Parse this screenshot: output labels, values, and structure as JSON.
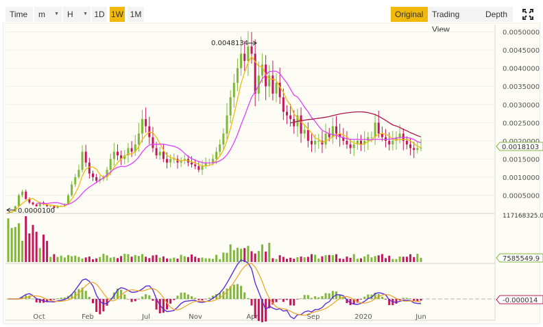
{
  "toolbar": {
    "time_label": "Time",
    "minute_label": "m",
    "hour_label": "H",
    "interval_1d": "1D",
    "interval_1w": "1W",
    "interval_1m": "1M",
    "active_interval": "1W",
    "original_label": "Original",
    "tradingview_label": "Trading View",
    "depth_label": "Depth",
    "fullscreen_icon": "fullscreen-icon"
  },
  "price_axis": [
    "0.0050000",
    "0.0045000",
    "0.0040000",
    "0.0035000",
    "0.0030000",
    "0.0025000",
    "0.0020000",
    "0.0015000",
    "0.0010000",
    "0.0005000"
  ],
  "current_price": "0.0018103",
  "high_label": "0.0048134",
  "low_label": "0.0000100",
  "volume_axis_top": "117168325.0(",
  "volume_current": "7585549.9",
  "macd_current": "-0.000014",
  "time_axis": [
    "Oct",
    "Feb",
    "Jul",
    "Nov",
    "Apr",
    "Sep",
    "2020",
    "Jun"
  ],
  "colors": {
    "up": "#7fb73a",
    "down": "#c2185b",
    "ma_fast": "#f0b90b",
    "ma_mid": "#e040fb",
    "ma_slow": "#b0134d",
    "macd_line": "#5b2bd6",
    "signal_line": "#f0a020",
    "accent": "#f0b90b"
  },
  "chart_data": {
    "type": "candlestick",
    "interval": "1W",
    "ylim": [
      0,
      0.0052
    ],
    "close_series": [
      2e-05,
      5e-05,
      0.0002,
      0.0005,
      0.0006,
      0.0004,
      0.0003,
      0.00025,
      0.0002,
      0.0003,
      0.00025,
      0.0002,
      0.0002,
      0.00015,
      0.0002,
      0.0002,
      0.00025,
      0.0005,
      0.0008,
      0.001,
      0.0012,
      0.0017,
      0.0014,
      0.0011,
      0.001,
      0.0009,
      0.00095,
      0.001,
      0.0012,
      0.0015,
      0.0017,
      0.0016,
      0.0015,
      0.0016,
      0.0018,
      0.0017,
      0.0019,
      0.0022,
      0.0026,
      0.0024,
      0.0021,
      0.0018,
      0.0016,
      0.0017,
      0.0015,
      0.0014,
      0.0015,
      0.0015,
      0.0014,
      0.00145,
      0.0015,
      0.0014,
      0.00135,
      0.0013,
      0.0012,
      0.0013,
      0.0014,
      0.0014,
      0.0015,
      0.0017,
      0.0019,
      0.0022,
      0.0027,
      0.0032,
      0.0036,
      0.004,
      0.0044,
      0.0042,
      0.0046,
      0.0044,
      0.0033,
      0.0038,
      0.0041,
      0.0035,
      0.0038,
      0.0033,
      0.0036,
      0.0032,
      0.0028,
      0.0027,
      0.0026,
      0.0024,
      0.0027,
      0.0022,
      0.0023,
      0.002,
      0.0019,
      0.002,
      0.002,
      0.0019,
      0.0022,
      0.0021,
      0.0024,
      0.0022,
      0.0021,
      0.002,
      0.0019,
      0.0018,
      0.0019,
      0.002,
      0.0019,
      0.002,
      0.0021,
      0.0021,
      0.0025,
      0.0022,
      0.0021,
      0.002,
      0.0019,
      0.002,
      0.0021,
      0.0022,
      0.002,
      0.0019,
      0.0018,
      0.00175,
      0.0018,
      0.0018103
    ],
    "high": 0.0048134,
    "low": 1e-05,
    "last": 0.0018103,
    "time_labels": [
      "Oct",
      "Feb",
      "Jul",
      "Nov",
      "Apr",
      "Sep",
      "2020",
      "Jun"
    ]
  }
}
